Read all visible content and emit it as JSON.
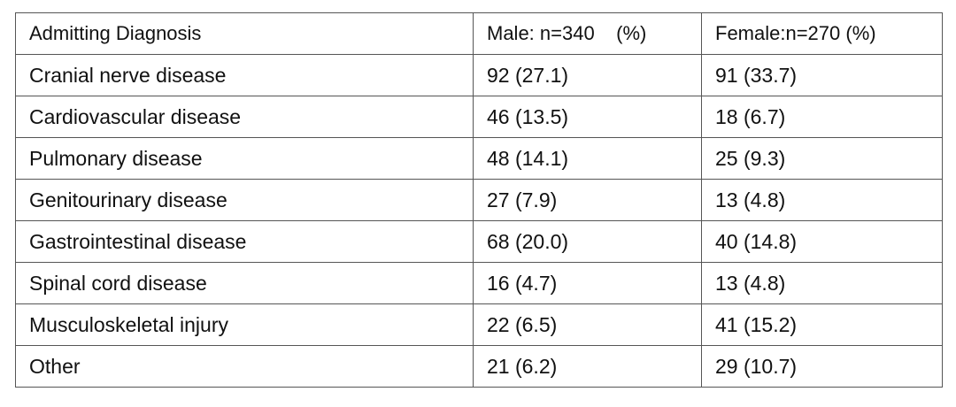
{
  "table": {
    "headers": [
      "Admitting Diagnosis",
      "Male: n=340    (%)",
      "Female:n=270 (%)"
    ],
    "rows": [
      [
        "Cranial nerve disease",
        "92 (27.1)",
        "91 (33.7)"
      ],
      [
        "Cardiovascular disease",
        "46 (13.5)",
        "18 (6.7)"
      ],
      [
        "Pulmonary disease",
        "48 (14.1)",
        "25 (9.3)"
      ],
      [
        "Genitourinary disease",
        "27 (7.9)",
        "13 (4.8)"
      ],
      [
        "Gastrointestinal disease",
        "68 (20.0)",
        "40 (14.8)"
      ],
      [
        "Spinal cord disease",
        "16 (4.7)",
        "13 (4.8)"
      ],
      [
        "Musculoskeletal injury",
        "22 (6.5)",
        "41 (15.2)"
      ],
      [
        "Other",
        "21 (6.2)",
        "29 (10.7)"
      ]
    ]
  }
}
